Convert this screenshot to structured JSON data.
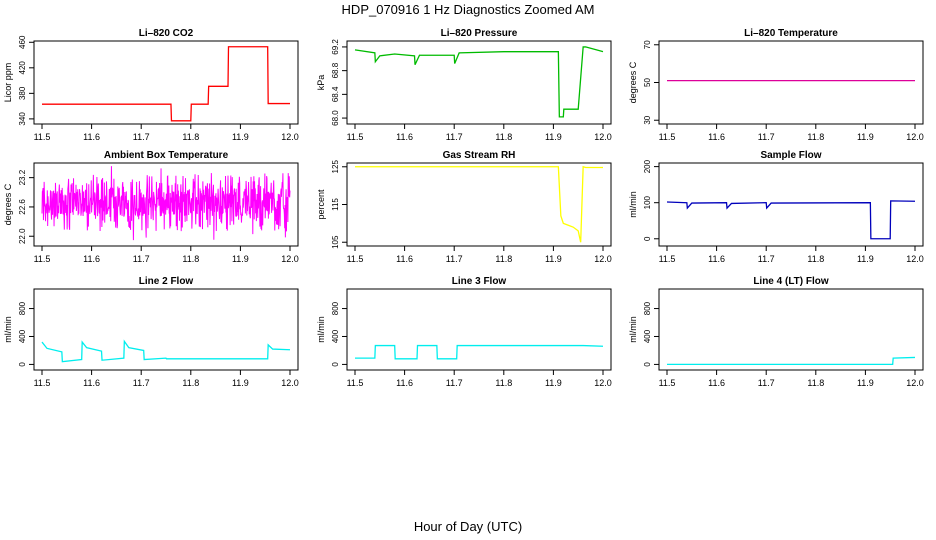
{
  "title": "HDP_070916  1 Hz Diagnostics Zoomed AM",
  "xlabel": "Hour of Day (UTC)",
  "chart_data": [
    {
      "type": "line",
      "title": "Li–820 CO2",
      "ylabel": "Licor ppm",
      "color": "#ff0000",
      "xlim": [
        11.5,
        12.0
      ],
      "ylim": [
        332,
        462
      ],
      "xticks": [
        "11.5",
        "11.6",
        "11.7",
        "11.8",
        "11.9",
        "12.0"
      ],
      "yticks": [
        "340",
        "380",
        "420",
        "460"
      ],
      "x": [
        11.5,
        11.76,
        11.761,
        11.8,
        11.801,
        11.835,
        11.836,
        11.875,
        11.876,
        11.955,
        11.956,
        12.0
      ],
      "y": [
        363,
        363,
        337,
        337,
        363,
        363,
        391,
        391,
        453,
        453,
        364,
        364
      ]
    },
    {
      "type": "line",
      "title": "Li–820 Pressure",
      "ylabel": "kPa",
      "color": "#00bb00",
      "xlim": [
        11.5,
        12.0
      ],
      "ylim": [
        67.9,
        69.3
      ],
      "xticks": [
        "11.5",
        "11.6",
        "11.7",
        "11.8",
        "11.9",
        "12.0"
      ],
      "yticks": [
        "68.0",
        "68.4",
        "68.8",
        "69.2"
      ],
      "x": [
        11.5,
        11.54,
        11.541,
        11.55,
        11.58,
        11.62,
        11.621,
        11.63,
        11.7,
        11.701,
        11.71,
        11.8,
        11.91,
        11.912,
        11.92,
        11.921,
        11.95,
        11.96,
        11.965,
        12.0
      ],
      "y": [
        69.15,
        69.1,
        68.95,
        69.05,
        69.08,
        69.05,
        68.9,
        69.06,
        69.06,
        68.92,
        69.1,
        69.12,
        69.12,
        68.02,
        68.02,
        68.15,
        68.15,
        69.2,
        69.2,
        69.12
      ]
    },
    {
      "type": "line",
      "title": "Li–820 Temperature",
      "ylabel": "degrees C",
      "color": "#dd0099",
      "xlim": [
        11.5,
        12.0
      ],
      "ylim": [
        28,
        72
      ],
      "xticks": [
        "11.5",
        "11.6",
        "11.7",
        "11.8",
        "11.9",
        "12.0"
      ],
      "yticks": [
        "30",
        "50",
        "70"
      ],
      "x": [
        11.5,
        12.0
      ],
      "y": [
        51,
        51
      ]
    },
    {
      "type": "line",
      "title": "Ambient Box Temperature",
      "ylabel": "degrees C",
      "color": "#ff00ff",
      "xlim": [
        11.5,
        12.0
      ],
      "ylim": [
        21.8,
        23.5
      ],
      "xticks": [
        "11.5",
        "11.6",
        "11.7",
        "11.8",
        "11.9",
        "12.0"
      ],
      "yticks": [
        "22.0",
        "22.6",
        "23.2"
      ],
      "noise_band": [
        22.1,
        23.3
      ],
      "noise_center": 22.7
    },
    {
      "type": "line",
      "title": "Gas Stream RH",
      "ylabel": "percent",
      "color": "#ffff00",
      "xlim": [
        11.5,
        12.0
      ],
      "ylim": [
        104,
        126
      ],
      "xticks": [
        "11.5",
        "11.6",
        "11.7",
        "11.8",
        "11.9",
        "12.0"
      ],
      "yticks": [
        "105",
        "115",
        "125"
      ],
      "x": [
        11.5,
        11.91,
        11.915,
        11.92,
        11.93,
        11.94,
        11.95,
        11.955,
        11.96,
        11.965,
        12.0
      ],
      "y": [
        125,
        125,
        112,
        110,
        109.5,
        109,
        108,
        105,
        125,
        124.8,
        124.8
      ]
    },
    {
      "type": "line",
      "title": "Sample Flow",
      "ylabel": "ml/min",
      "color": "#0000bb",
      "xlim": [
        11.5,
        12.0
      ],
      "ylim": [
        -20,
        210
      ],
      "xticks": [
        "11.5",
        "11.6",
        "11.7",
        "11.8",
        "11.9",
        "12.0"
      ],
      "yticks": [
        "0",
        "100",
        "200"
      ],
      "x": [
        11.5,
        11.54,
        11.541,
        11.55,
        11.62,
        11.621,
        11.63,
        11.7,
        11.701,
        11.71,
        11.91,
        11.911,
        11.95,
        11.951,
        12.0
      ],
      "y": [
        102,
        100,
        85,
        99,
        100,
        85,
        98,
        100,
        85,
        99,
        100,
        0,
        0,
        105,
        104
      ]
    },
    {
      "type": "line",
      "title": "Line 2 Flow",
      "ylabel": "ml/min",
      "color": "#00eeee",
      "xlim": [
        11.5,
        12.0
      ],
      "ylim": [
        -80,
        1080
      ],
      "xticks": [
        "11.5",
        "11.6",
        "11.7",
        "11.8",
        "11.9",
        "12.0"
      ],
      "yticks": [
        "0",
        "400",
        "800"
      ],
      "x": [
        11.5,
        11.51,
        11.54,
        11.541,
        11.58,
        11.581,
        11.59,
        11.62,
        11.621,
        11.665,
        11.666,
        11.675,
        11.705,
        11.706,
        11.75,
        11.751,
        11.955,
        11.956,
        11.965,
        12.0
      ],
      "y": [
        320,
        230,
        180,
        40,
        70,
        320,
        240,
        190,
        60,
        90,
        330,
        240,
        200,
        70,
        90,
        80,
        80,
        280,
        220,
        210
      ]
    },
    {
      "type": "line",
      "title": "Line 3 Flow",
      "ylabel": "ml/min",
      "color": "#00eeee",
      "xlim": [
        11.5,
        12.0
      ],
      "ylim": [
        -80,
        1080
      ],
      "xticks": [
        "11.5",
        "11.6",
        "11.7",
        "11.8",
        "11.9",
        "12.0"
      ],
      "yticks": [
        "0",
        "400",
        "800"
      ],
      "x": [
        11.5,
        11.54,
        11.541,
        11.58,
        11.581,
        11.625,
        11.626,
        11.665,
        11.666,
        11.705,
        11.706,
        11.96,
        12.0
      ],
      "y": [
        90,
        90,
        270,
        270,
        80,
        80,
        270,
        270,
        80,
        80,
        270,
        270,
        260
      ]
    },
    {
      "type": "line",
      "title": "Line 4 (LT) Flow",
      "ylabel": "ml/min",
      "color": "#00eeee",
      "xlim": [
        11.5,
        12.0
      ],
      "ylim": [
        -80,
        1080
      ],
      "xticks": [
        "11.5",
        "11.6",
        "11.7",
        "11.8",
        "11.9",
        "12.0"
      ],
      "yticks": [
        "0",
        "400",
        "800"
      ],
      "x": [
        11.5,
        11.955,
        11.956,
        12.0
      ],
      "y": [
        0,
        0,
        90,
        100
      ]
    }
  ]
}
